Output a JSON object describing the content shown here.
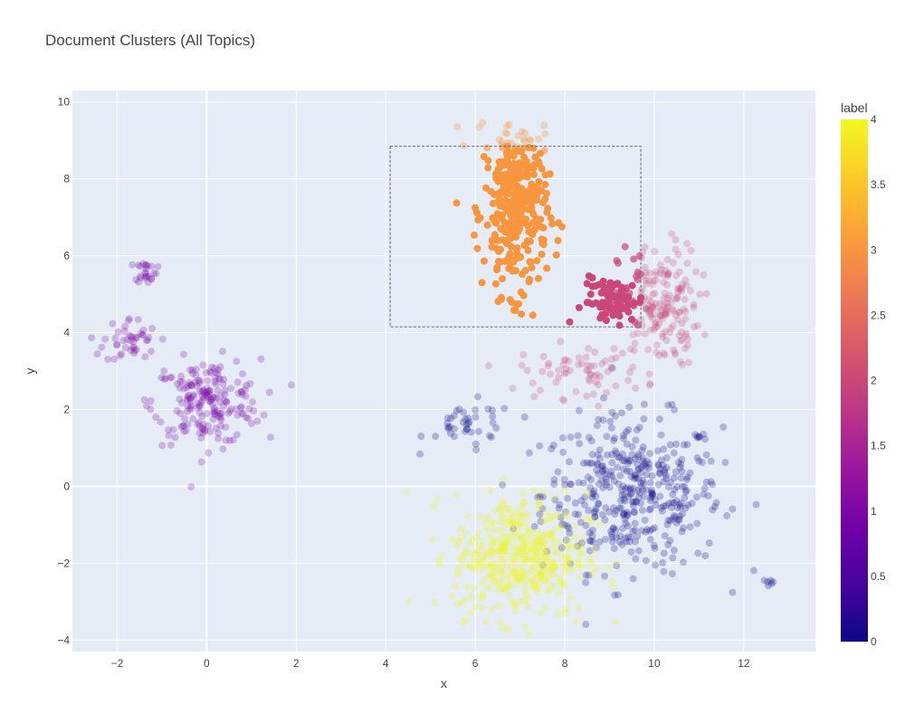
{
  "chart_data": {
    "type": "scatter",
    "title": "Document Clusters (All Topics)",
    "xlabel": "x",
    "ylabel": "y",
    "xlim": [
      -3,
      13.6
    ],
    "ylim": [
      -4.3,
      10.3
    ],
    "x_ticks": [
      -2,
      0,
      2,
      4,
      6,
      8,
      10,
      12
    ],
    "y_ticks": [
      -4,
      -2,
      0,
      2,
      4,
      6,
      8,
      10
    ],
    "grid": true,
    "plot_background": "#E5ECF6",
    "colorscale": [
      "#0d0887",
      "#46039f",
      "#7201a8",
      "#9c179e",
      "#bd3786",
      "#d8576b",
      "#ed7953",
      "#fb9f3a",
      "#fdca26",
      "#f0f921"
    ],
    "colorbar": {
      "title": "label",
      "min": 0,
      "max": 4,
      "ticks": [
        "0",
        "0.5",
        "1",
        "1.5",
        "2",
        "2.5",
        "3",
        "3.5",
        "4"
      ]
    },
    "selection_box": {
      "x": [
        4.1,
        9.7
      ],
      "y": [
        4.15,
        8.85
      ]
    },
    "clusters": [
      {
        "label": 0,
        "cx": 9.5,
        "cy": -0.2,
        "sx": 1.0,
        "sy": 1.0,
        "n": 420,
        "opacity": 0.25,
        "hi_opacity": 0.7
      },
      {
        "label": 0,
        "cx": 5.9,
        "cy": 1.6,
        "sx": 0.5,
        "sy": 0.3,
        "n": 40,
        "opacity": 0.25,
        "hi_opacity": 0.7
      },
      {
        "label": 0,
        "cx": 12.6,
        "cy": -2.5,
        "sx": 0.05,
        "sy": 0.05,
        "n": 6,
        "opacity": 0.25,
        "hi_opacity": 0.7
      },
      {
        "label": 1,
        "cx": 0.0,
        "cy": 2.2,
        "sx": 0.6,
        "sy": 0.55,
        "n": 200,
        "opacity": 0.25,
        "hi_opacity": 0.7
      },
      {
        "label": 1,
        "cx": -1.7,
        "cy": 3.8,
        "sx": 0.3,
        "sy": 0.3,
        "n": 45,
        "opacity": 0.25,
        "hi_opacity": 0.7
      },
      {
        "label": 1,
        "cx": -1.35,
        "cy": 5.6,
        "sx": 0.12,
        "sy": 0.15,
        "n": 25,
        "opacity": 0.25,
        "hi_opacity": 0.7
      },
      {
        "label": 2,
        "cx": 10.1,
        "cy": 4.7,
        "sx": 0.45,
        "sy": 0.8,
        "n": 180,
        "opacity": 0.25,
        "hi_opacity": 0.7
      },
      {
        "label": 2,
        "cx": 8.4,
        "cy": 3.0,
        "sx": 0.7,
        "sy": 0.35,
        "n": 70,
        "opacity": 0.25,
        "hi_opacity": 0.7
      },
      {
        "label": 2,
        "cx": 9.1,
        "cy": 4.8,
        "sx": 0.35,
        "sy": 0.3,
        "n": 80,
        "opacity": 0.85,
        "hi_opacity": 1.0,
        "box_only": true
      },
      {
        "label": 3,
        "cx": 6.9,
        "cy": 7.2,
        "sx": 0.35,
        "sy": 1.1,
        "n": 320,
        "opacity": 0.9,
        "hi_opacity": 1.0,
        "box_only": true
      },
      {
        "label": 3,
        "cx": 6.8,
        "cy": 9.1,
        "sx": 0.4,
        "sy": 0.2,
        "n": 30,
        "opacity": 0.3,
        "hi_opacity": 0.6
      },
      {
        "label": 4,
        "cx": 7.0,
        "cy": -1.8,
        "sx": 0.75,
        "sy": 0.8,
        "n": 430,
        "opacity": 0.25,
        "hi_opacity": 0.6
      }
    ]
  }
}
